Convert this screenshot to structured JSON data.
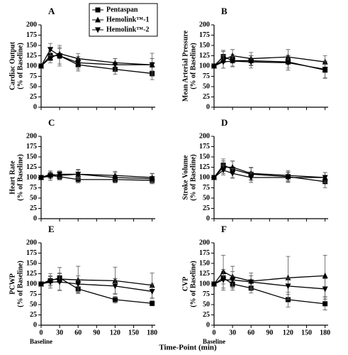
{
  "shared_xlabel": "Time-Point (min)",
  "chart_data": [
    {
      "type": "line",
      "panel_label": "A",
      "ylabel": [
        "Cardiac Output",
        "(% of Baseline)"
      ],
      "x": [
        0,
        15,
        30,
        60,
        120,
        180
      ],
      "xlim": [
        0,
        185
      ],
      "xticks": [
        0,
        30,
        60,
        90,
        120,
        150,
        180
      ],
      "show_xtick_labels": false,
      "ylim": [
        0,
        200
      ],
      "yticks": [
        0,
        25,
        50,
        75,
        100,
        125,
        150,
        175,
        200
      ],
      "legend": true,
      "series": [
        {
          "name": "Pentaspan",
          "color": "#000000",
          "marker": "square",
          "values": [
            100,
            125,
            125,
            103,
            92,
            82
          ],
          "errors": [
            0,
            12,
            20,
            15,
            12,
            15
          ]
        },
        {
          "name": "Hemolink™-1",
          "color": "#000000",
          "marker": "triangle-up",
          "values": [
            100,
            120,
            130,
            118,
            108,
            103
          ],
          "errors": [
            0,
            12,
            12,
            12,
            10,
            28
          ]
        },
        {
          "name": "Hemolink™-2",
          "color": "#000000",
          "marker": "triangle-down",
          "values": [
            100,
            140,
            125,
            108,
            103,
            103
          ],
          "errors": [
            0,
            15,
            25,
            15,
            15,
            15
          ]
        }
      ]
    },
    {
      "type": "line",
      "panel_label": "B",
      "ylabel": [
        "Mean Arterial Pressure",
        "(% of Baseline)"
      ],
      "x": [
        0,
        15,
        30,
        60,
        120,
        180
      ],
      "xlim": [
        0,
        185
      ],
      "xticks": [
        0,
        30,
        60,
        90,
        120,
        150,
        180
      ],
      "show_xtick_labels": false,
      "ylim": [
        0,
        200
      ],
      "yticks": [
        0,
        25,
        50,
        75,
        100,
        125,
        150,
        175,
        200
      ],
      "legend": false,
      "series": [
        {
          "name": "Pentaspan",
          "color": "#000000",
          "marker": "square",
          "values": [
            100,
            123,
            113,
            113,
            110,
            90
          ],
          "errors": [
            0,
            15,
            15,
            12,
            15,
            20
          ]
        },
        {
          "name": "Hemolink™-1",
          "color": "#000000",
          "marker": "triangle-up",
          "values": [
            100,
            115,
            125,
            118,
            122,
            110
          ],
          "errors": [
            0,
            20,
            15,
            15,
            18,
            15
          ]
        },
        {
          "name": "Hemolink™-2",
          "color": "#000000",
          "marker": "triangle-down",
          "values": [
            100,
            110,
            112,
            110,
            108,
            92
          ],
          "errors": [
            0,
            15,
            12,
            15,
            18,
            20
          ]
        }
      ]
    },
    {
      "type": "line",
      "panel_label": "C",
      "ylabel": [
        "Heart Rate",
        "(% of Baseline)"
      ],
      "x": [
        0,
        15,
        30,
        60,
        120,
        180
      ],
      "xlim": [
        0,
        185
      ],
      "xticks": [
        0,
        30,
        60,
        90,
        120,
        150,
        180
      ],
      "show_xtick_labels": false,
      "ylim": [
        0,
        200
      ],
      "yticks": [
        0,
        25,
        50,
        75,
        100,
        125,
        150,
        175,
        200
      ],
      "legend": false,
      "series": [
        {
          "name": "Pentaspan",
          "color": "#000000",
          "marker": "square",
          "values": [
            100,
            105,
            102,
            95,
            95,
            93
          ],
          "errors": [
            0,
            8,
            8,
            8,
            8,
            8
          ]
        },
        {
          "name": "Hemolink™-1",
          "color": "#000000",
          "marker": "triangle-up",
          "values": [
            100,
            108,
            105,
            108,
            105,
            100
          ],
          "errors": [
            0,
            8,
            10,
            12,
            10,
            10
          ]
        },
        {
          "name": "Hemolink™-2",
          "color": "#000000",
          "marker": "triangle-down",
          "values": [
            100,
            103,
            108,
            108,
            100,
            97
          ],
          "errors": [
            0,
            10,
            8,
            10,
            12,
            12
          ]
        }
      ]
    },
    {
      "type": "line",
      "panel_label": "D",
      "ylabel": [
        "Stroke Volume",
        "(% of Baseline)"
      ],
      "x": [
        0,
        15,
        30,
        60,
        120,
        180
      ],
      "xlim": [
        0,
        185
      ],
      "xticks": [
        0,
        30,
        60,
        90,
        120,
        150,
        180
      ],
      "show_xtick_labels": false,
      "ylim": [
        0,
        200
      ],
      "yticks": [
        0,
        25,
        50,
        75,
        100,
        125,
        150,
        175,
        200
      ],
      "legend": false,
      "series": [
        {
          "name": "Pentaspan",
          "color": "#000000",
          "marker": "square",
          "values": [
            100,
            130,
            120,
            108,
            102,
            90
          ],
          "errors": [
            0,
            15,
            20,
            15,
            12,
            15
          ]
        },
        {
          "name": "Hemolink™-1",
          "color": "#000000",
          "marker": "triangle-up",
          "values": [
            100,
            125,
            125,
            110,
            105,
            100
          ],
          "errors": [
            0,
            15,
            15,
            15,
            12,
            12
          ]
        },
        {
          "name": "Hemolink™-2",
          "color": "#000000",
          "marker": "triangle-down",
          "values": [
            100,
            118,
            110,
            100,
            100,
            100
          ],
          "errors": [
            0,
            12,
            12,
            12,
            12,
            12
          ]
        }
      ]
    },
    {
      "type": "line",
      "panel_label": "E",
      "ylabel": [
        "PCWP",
        "(% of Baseline)"
      ],
      "x": [
        0,
        15,
        30,
        60,
        120,
        180
      ],
      "xlim": [
        0,
        185
      ],
      "xticks": [
        0,
        30,
        60,
        90,
        120,
        150,
        180
      ],
      "show_xtick_labels": true,
      "x_annotation": "Baseline",
      "ylim": [
        0,
        200
      ],
      "yticks": [
        0,
        25,
        50,
        75,
        100,
        125,
        150,
        175,
        200
      ],
      "legend": false,
      "series": [
        {
          "name": "Pentaspan",
          "color": "#000000",
          "marker": "square",
          "values": [
            100,
            108,
            115,
            88,
            62,
            53
          ],
          "errors": [
            0,
            10,
            12,
            10,
            8,
            6
          ]
        },
        {
          "name": "Hemolink™-1",
          "color": "#000000",
          "marker": "triangle-up",
          "values": [
            100,
            110,
            112,
            110,
            108,
            97
          ],
          "errors": [
            0,
            15,
            28,
            33,
            33,
            30
          ]
        },
        {
          "name": "Hemolink™-2",
          "color": "#000000",
          "marker": "triangle-down",
          "values": [
            100,
            105,
            105,
            100,
            95,
            82
          ],
          "errors": [
            0,
            15,
            20,
            20,
            18,
            18
          ]
        }
      ]
    },
    {
      "type": "line",
      "panel_label": "F",
      "ylabel": [
        "CVP",
        "(% of Baseline)"
      ],
      "x": [
        0,
        15,
        30,
        60,
        120,
        180
      ],
      "xlim": [
        0,
        185
      ],
      "xticks": [
        0,
        30,
        60,
        90,
        120,
        150,
        180
      ],
      "show_xtick_labels": true,
      "x_annotation": "Baseline",
      "ylim": [
        0,
        200
      ],
      "yticks": [
        0,
        25,
        50,
        75,
        100,
        125,
        150,
        175,
        200
      ],
      "legend": false,
      "series": [
        {
          "name": "Pentaspan",
          "color": "#000000",
          "marker": "square",
          "values": [
            100,
            115,
            100,
            90,
            62,
            52
          ],
          "errors": [
            0,
            15,
            15,
            12,
            18,
            15
          ]
        },
        {
          "name": "Hemolink™-1",
          "color": "#000000",
          "marker": "triangle-up",
          "values": [
            100,
            130,
            118,
            107,
            115,
            120
          ],
          "errors": [
            0,
            40,
            25,
            20,
            52,
            50
          ]
        },
        {
          "name": "Hemolink™-2",
          "color": "#000000",
          "marker": "triangle-down",
          "values": [
            100,
            110,
            110,
            105,
            95,
            88
          ],
          "errors": [
            0,
            25,
            20,
            15,
            20,
            25
          ]
        }
      ]
    }
  ]
}
